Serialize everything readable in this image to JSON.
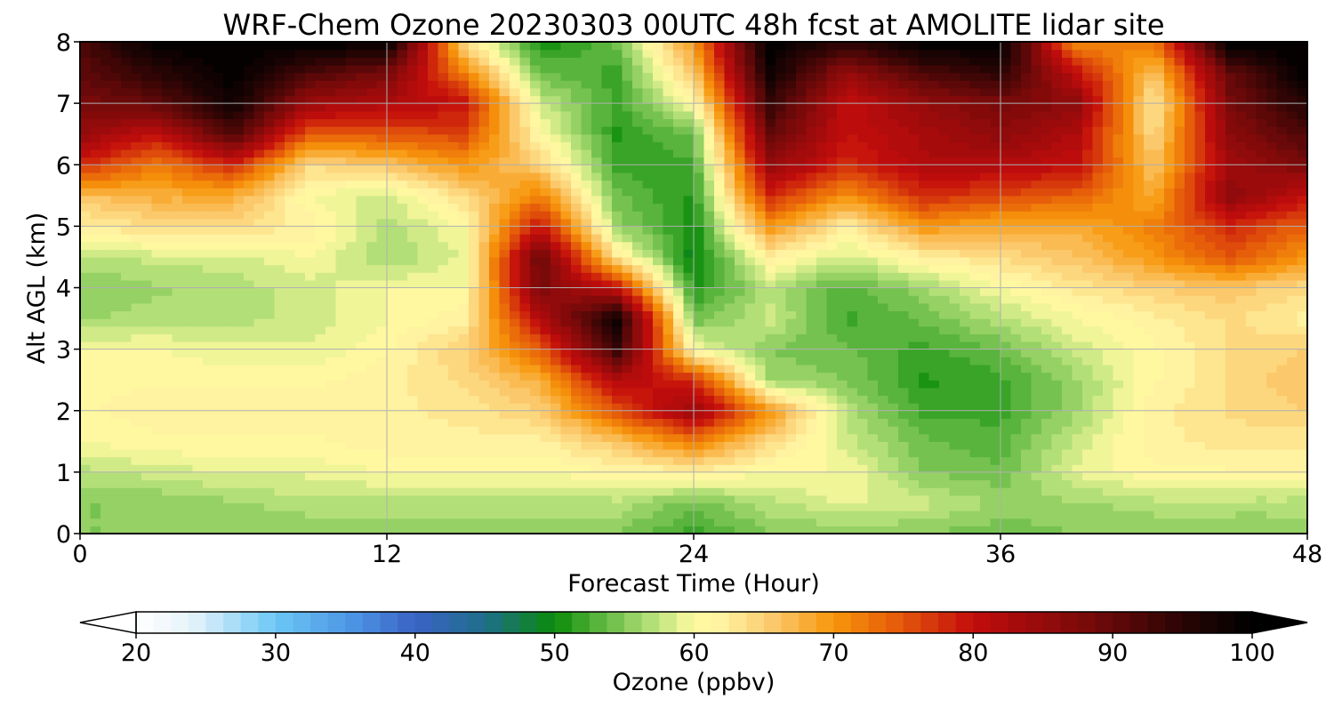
{
  "chart_data": {
    "type": "heatmap",
    "title": "WRF-Chem Ozone  20230303 00UTC 48h fcst at AMOLITE lidar site",
    "xlabel": "Forecast Time (Hour)",
    "ylabel": "Alt AGL (km)",
    "xlim": [
      0,
      48
    ],
    "ylim": [
      0,
      8
    ],
    "xticks": [
      0,
      12,
      24,
      36,
      48
    ],
    "yticks": [
      0,
      1,
      2,
      3,
      4,
      5,
      6,
      7,
      8
    ],
    "grid": true,
    "x": [
      0,
      3,
      6,
      9,
      12,
      15,
      18,
      21,
      24,
      27,
      30,
      33,
      36,
      39,
      42,
      45,
      48
    ],
    "y": [
      0,
      0.5,
      1,
      1.5,
      2,
      2.5,
      3,
      3.5,
      4,
      4.5,
      5,
      5.5,
      6,
      6.5,
      7,
      7.5,
      8
    ],
    "z": [
      [
        55,
        55,
        55,
        55,
        55,
        55,
        55,
        55,
        52,
        55,
        55,
        55,
        54,
        55,
        55,
        55,
        55
      ],
      [
        55,
        55,
        56,
        57,
        57,
        57,
        57,
        57,
        54,
        57,
        59,
        58,
        56,
        56,
        57,
        57,
        57
      ],
      [
        57,
        58,
        59,
        59,
        60,
        60,
        60,
        61,
        62,
        60,
        60,
        55,
        54,
        59,
        61,
        61,
        61
      ],
      [
        60,
        61,
        61,
        61,
        62,
        62,
        62,
        66,
        72,
        64,
        58,
        54,
        53,
        58,
        62,
        63,
        63
      ],
      [
        61,
        62,
        62,
        62,
        62,
        63,
        65,
        75,
        85,
        70,
        57,
        52,
        52,
        56,
        62,
        64,
        65
      ],
      [
        61,
        61,
        61,
        61,
        62,
        64,
        68,
        82,
        78,
        56,
        55,
        51,
        52,
        56,
        61,
        64,
        66
      ],
      [
        60,
        60,
        59,
        59,
        61,
        65,
        74,
        94,
        60,
        55,
        54,
        52,
        54,
        58,
        61,
        64,
        65
      ],
      [
        56,
        57,
        57,
        58,
        60,
        62,
        82,
        98,
        54,
        58,
        52,
        54,
        57,
        60,
        62,
        64,
        62
      ],
      [
        55,
        56,
        57,
        58,
        60,
        60,
        88,
        80,
        51,
        57,
        53,
        56,
        60,
        63,
        65,
        66,
        64
      ],
      [
        57,
        58,
        58,
        60,
        56,
        59,
        90,
        63,
        49,
        62,
        58,
        62,
        64,
        66,
        70,
        75,
        70
      ],
      [
        62,
        64,
        64,
        62,
        57,
        60,
        80,
        56,
        50,
        70,
        62,
        70,
        68,
        68,
        72,
        78,
        74
      ],
      [
        66,
        68,
        68,
        60,
        58,
        64,
        72,
        54,
        51,
        78,
        70,
        78,
        76,
        74,
        68,
        86,
        80
      ],
      [
        78,
        72,
        78,
        64,
        66,
        70,
        65,
        52,
        52,
        85,
        78,
        82,
        82,
        80,
        66,
        84,
        88
      ],
      [
        85,
        80,
        92,
        74,
        75,
        76,
        61,
        51,
        54,
        90,
        80,
        83,
        86,
        82,
        64,
        86,
        92
      ],
      [
        88,
        90,
        98,
        84,
        82,
        80,
        58,
        52,
        60,
        94,
        80,
        85,
        88,
        86,
        62,
        88,
        96
      ],
      [
        90,
        95,
        100,
        92,
        88,
        72,
        54,
        52,
        66,
        98,
        85,
        92,
        95,
        80,
        66,
        90,
        100
      ],
      [
        92,
        100,
        100,
        100,
        100,
        64,
        50,
        54,
        70,
        100,
        95,
        100,
        100,
        70,
        72,
        100,
        100
      ]
    ],
    "colorbar": {
      "label": "Ozone  (ppbv)",
      "min": 20,
      "max": 100,
      "ticks": [
        20,
        30,
        40,
        50,
        60,
        70,
        80,
        90,
        100
      ],
      "extend": "both",
      "step": 1.25
    },
    "colormap": [
      {
        "v": 20,
        "c": "#ffffff"
      },
      {
        "v": 24,
        "c": "#e6f3fa"
      },
      {
        "v": 30,
        "c": "#6cc7f5"
      },
      {
        "v": 36,
        "c": "#4a90e2"
      },
      {
        "v": 40,
        "c": "#3a63c4"
      },
      {
        "v": 45,
        "c": "#1e6e8a"
      },
      {
        "v": 50,
        "c": "#0a8a0a"
      },
      {
        "v": 53,
        "c": "#55b33a"
      },
      {
        "v": 57,
        "c": "#b6e07a"
      },
      {
        "v": 60,
        "c": "#fffba0"
      },
      {
        "v": 62,
        "c": "#fff1a0"
      },
      {
        "v": 66,
        "c": "#fbc566"
      },
      {
        "v": 70,
        "c": "#f7960a"
      },
      {
        "v": 74,
        "c": "#e8620a"
      },
      {
        "v": 80,
        "c": "#c30c0c"
      },
      {
        "v": 88,
        "c": "#7a0a0a"
      },
      {
        "v": 95,
        "c": "#2a0505"
      },
      {
        "v": 100,
        "c": "#000000"
      }
    ]
  }
}
